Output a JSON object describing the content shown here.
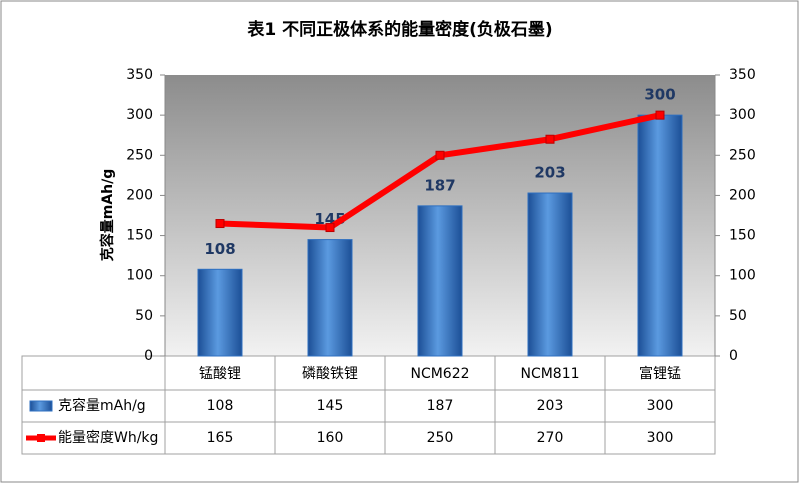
{
  "chart_data": {
    "type": "combo",
    "title": "表1 不同正极体系的能量密度(负极石墨)",
    "y_label": "克容量mAh/g",
    "categories": [
      "锰酸锂",
      "磷酸铁锂",
      "NCM622",
      "NCM811",
      "富锂锰"
    ],
    "series": [
      {
        "name": "克容量mAh/g",
        "type": "bar",
        "color": "#2e6fc0",
        "values": [
          108,
          145,
          187,
          203,
          300
        ]
      },
      {
        "name": "能量密度Wh/kg",
        "type": "line",
        "color": "#ff0000",
        "axis": "y2",
        "values": [
          165,
          160,
          250,
          270,
          300
        ]
      }
    ],
    "ylim": [
      0,
      350
    ],
    "yticks": [
      0,
      50,
      100,
      150,
      200,
      250,
      300,
      350
    ],
    "y2lim": [
      0,
      350
    ],
    "y2ticks": [
      0,
      50,
      100,
      150,
      200,
      250,
      300,
      350
    ],
    "data_table": true
  }
}
